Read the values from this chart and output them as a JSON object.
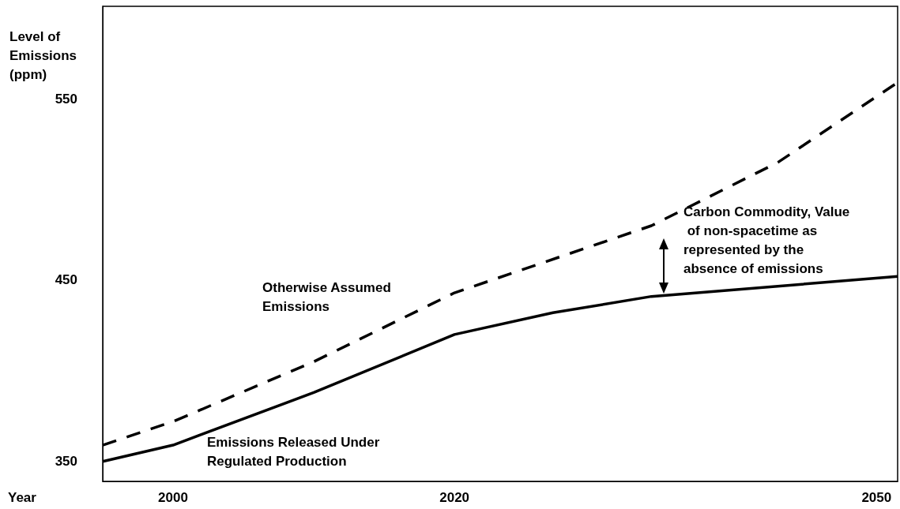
{
  "chart_data": {
    "type": "line",
    "xlabel": "Year",
    "ylabel": "Level of Emissions (ppm)",
    "xlim": [
      1995,
      2051.5
    ],
    "xticks": [
      2000,
      2020,
      2050
    ],
    "ylim": [
      339,
      601
    ],
    "yticks": [
      350,
      450,
      550
    ],
    "marker": "none",
    "series": [
      {
        "color": "#000000",
        "line_style": "dashed",
        "x": [
          1995,
          2000,
          2010,
          2020,
          2034,
          2043,
          2051.5
        ],
        "values": [
          359,
          372,
          405,
          443,
          480,
          515,
          559
        ]
      },
      {
        "color": "#000000",
        "line_style": "solid",
        "x": [
          1995,
          2000,
          2010,
          2020,
          2027,
          2034,
          2051.5
        ],
        "values": [
          350,
          359,
          388,
          420,
          432,
          441,
          452
        ]
      }
    ],
    "annotations": [
      "Otherwise Assumed Emissions",
      "Emissions Released Under Regulated Production",
      "Carbon Commodity, Value of non-spacetime as represented by the absence of emissions"
    ]
  }
}
